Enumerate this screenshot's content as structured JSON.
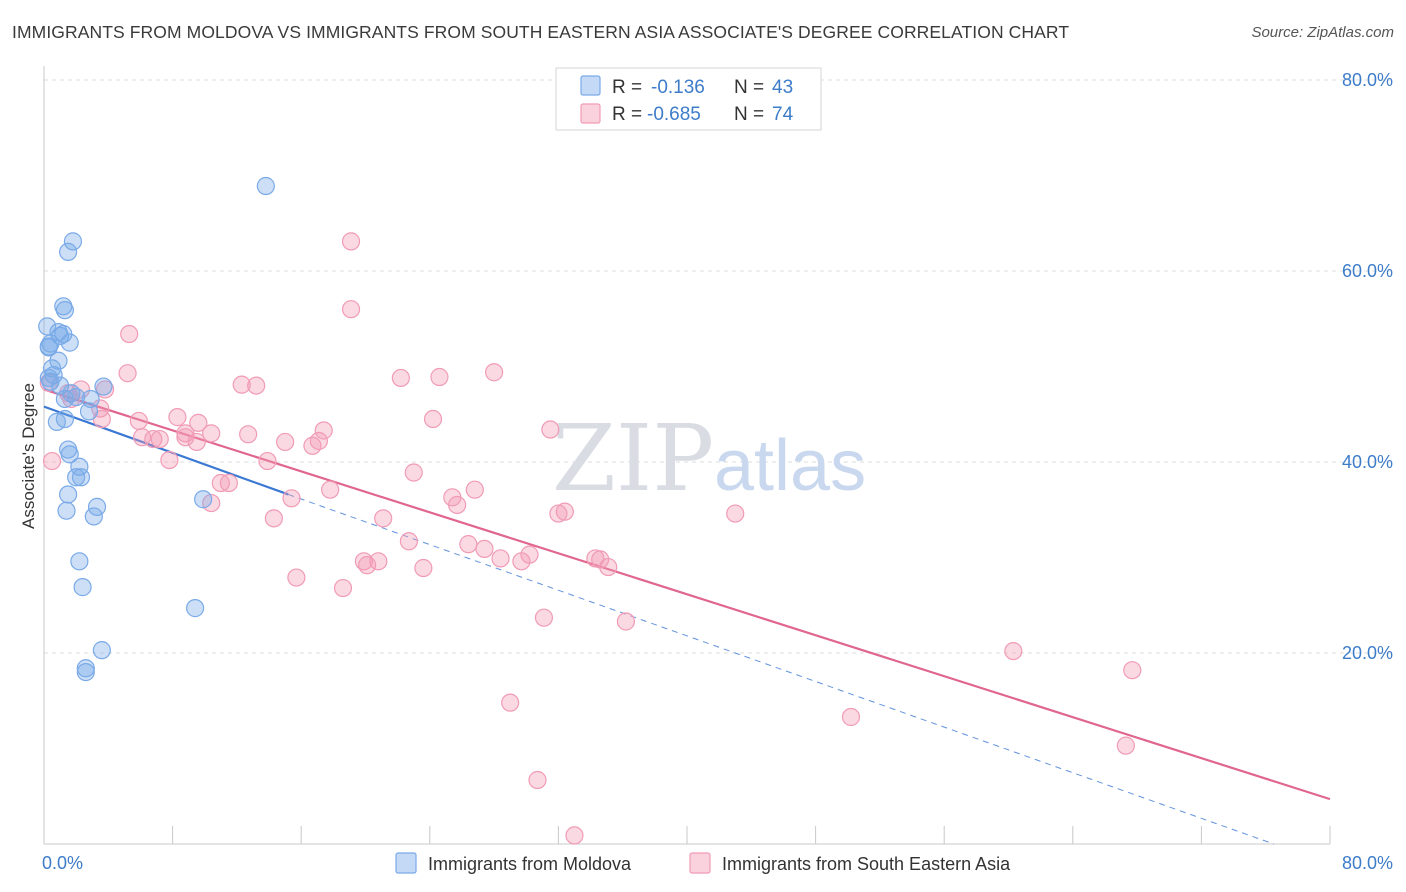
{
  "title": "IMMIGRANTS FROM MOLDOVA VS IMMIGRANTS FROM SOUTH EASTERN ASIA ASSOCIATE'S DEGREE CORRELATION CHART",
  "source": "Source: ZipAtlas.com",
  "watermark": {
    "zip": "ZIP",
    "atlas": "atlas"
  },
  "legend_top": {
    "rows": [
      {
        "r_label": "R =",
        "r_value": "-0.136",
        "n_label": "N =",
        "n_value": "43",
        "color": "#7aaae8"
      },
      {
        "r_label": "R =",
        "r_value": "-0.685",
        "n_label": "N =",
        "n_value": "74",
        "color": "#f19bb6"
      }
    ]
  },
  "legend_bottom": {
    "items": [
      {
        "label": "Immigrants from Moldova",
        "color": "#7aaae8"
      },
      {
        "label": "Immigrants from South Eastern Asia",
        "color": "#f19bb6"
      }
    ]
  },
  "chart_data": {
    "type": "scatter",
    "title": "IMMIGRANTS FROM MOLDOVA VS IMMIGRANTS FROM SOUTH EASTERN ASIA ASSOCIATE'S DEGREE CORRELATION CHART",
    "xlabel": "",
    "ylabel": "Associate's Degree",
    "xlim": [
      0,
      80
    ],
    "ylim": [
      0,
      80
    ],
    "x_tick_labels": [
      "0.0%",
      "80.0%"
    ],
    "y_tick_labels": [
      "20.0%",
      "40.0%",
      "60.0%",
      "80.0%"
    ],
    "y_ticks": [
      20,
      40,
      60,
      80
    ],
    "grid": true,
    "legend_position": "top-center",
    "series": [
      {
        "name": "Immigrants from Moldova",
        "color": "#7aaae8",
        "line_color": "#3b78d4",
        "trend": {
          "x": [
            0,
            15.2
          ],
          "y": [
            45.8,
            36.6
          ],
          "dashed_x": [
            15.2,
            76.5
          ],
          "dashed_y": [
            36.6,
            0
          ]
        },
        "points": [
          [
            0.2,
            54.2
          ],
          [
            0.4,
            52.4
          ],
          [
            0.3,
            52.1
          ],
          [
            0.5,
            49.8
          ],
          [
            0.4,
            48.4
          ],
          [
            0.6,
            49.1
          ],
          [
            0.3,
            48.8
          ],
          [
            0.9,
            53.6
          ],
          [
            1.0,
            53.2
          ],
          [
            1.2,
            56.3
          ],
          [
            1.3,
            55.9
          ],
          [
            1.2,
            53.4
          ],
          [
            0.9,
            50.6
          ],
          [
            1.6,
            52.5
          ],
          [
            1.5,
            62.0
          ],
          [
            1.8,
            63.1
          ],
          [
            1.0,
            48.0
          ],
          [
            1.3,
            46.6
          ],
          [
            1.7,
            47.2
          ],
          [
            2.0,
            46.8
          ],
          [
            2.8,
            45.3
          ],
          [
            2.9,
            46.6
          ],
          [
            3.7,
            47.9
          ],
          [
            0.8,
            44.2
          ],
          [
            1.3,
            44.5
          ],
          [
            1.5,
            41.3
          ],
          [
            1.6,
            40.8
          ],
          [
            2.2,
            39.5
          ],
          [
            2.0,
            38.4
          ],
          [
            2.3,
            38.4
          ],
          [
            1.5,
            36.6
          ],
          [
            3.3,
            35.3
          ],
          [
            1.4,
            34.9
          ],
          [
            3.1,
            34.3
          ],
          [
            2.2,
            29.6
          ],
          [
            2.4,
            26.9
          ],
          [
            9.9,
            36.1
          ],
          [
            9.4,
            24.7
          ],
          [
            3.6,
            20.3
          ],
          [
            2.6,
            18.4
          ],
          [
            2.6,
            18.0
          ],
          [
            13.8,
            68.9
          ],
          [
            0.3,
            52.0
          ]
        ]
      },
      {
        "name": "Immigrants from South Eastern Asia",
        "color": "#f19bb6",
        "line_color": "#e0668f",
        "trend": {
          "x": [
            0,
            80
          ],
          "y": [
            47.6,
            4.7
          ]
        },
        "points": [
          [
            0.3,
            48.3
          ],
          [
            0.5,
            40.1
          ],
          [
            1.5,
            47.2
          ],
          [
            2.3,
            47.6
          ],
          [
            1.7,
            46.6
          ],
          [
            3.8,
            47.6
          ],
          [
            3.5,
            45.6
          ],
          [
            5.2,
            49.3
          ],
          [
            5.3,
            53.4
          ],
          [
            3.6,
            44.5
          ],
          [
            5.9,
            44.3
          ],
          [
            6.1,
            42.6
          ],
          [
            6.8,
            42.4
          ],
          [
            7.2,
            42.4
          ],
          [
            7.8,
            40.2
          ],
          [
            8.3,
            44.7
          ],
          [
            8.8,
            43.0
          ],
          [
            8.8,
            42.6
          ],
          [
            9.6,
            44.1
          ],
          [
            9.5,
            42.1
          ],
          [
            10.4,
            43.0
          ],
          [
            10.4,
            35.7
          ],
          [
            11.0,
            37.8
          ],
          [
            11.5,
            37.8
          ],
          [
            12.3,
            48.1
          ],
          [
            13.2,
            48.0
          ],
          [
            12.7,
            42.9
          ],
          [
            13.9,
            40.1
          ],
          [
            14.3,
            34.1
          ],
          [
            15.0,
            42.1
          ],
          [
            15.4,
            36.2
          ],
          [
            15.7,
            27.9
          ],
          [
            16.7,
            41.7
          ],
          [
            17.1,
            42.2
          ],
          [
            17.4,
            43.3
          ],
          [
            17.8,
            37.1
          ],
          [
            18.6,
            26.8
          ],
          [
            19.1,
            56.0
          ],
          [
            19.1,
            63.1
          ],
          [
            19.9,
            29.6
          ],
          [
            20.1,
            29.2
          ],
          [
            20.8,
            29.6
          ],
          [
            21.1,
            34.1
          ],
          [
            22.2,
            48.8
          ],
          [
            22.7,
            31.7
          ],
          [
            23.0,
            38.9
          ],
          [
            23.6,
            28.9
          ],
          [
            24.2,
            44.5
          ],
          [
            24.6,
            48.9
          ],
          [
            25.4,
            36.3
          ],
          [
            25.7,
            35.5
          ],
          [
            26.4,
            31.4
          ],
          [
            26.8,
            37.1
          ],
          [
            27.4,
            30.9
          ],
          [
            28.0,
            49.4
          ],
          [
            28.4,
            29.9
          ],
          [
            29.0,
            14.8
          ],
          [
            29.7,
            29.6
          ],
          [
            30.2,
            30.3
          ],
          [
            30.7,
            6.7
          ],
          [
            31.1,
            23.7
          ],
          [
            31.5,
            43.4
          ],
          [
            32.0,
            34.6
          ],
          [
            32.4,
            34.8
          ],
          [
            33.0,
            0.9
          ],
          [
            34.3,
            29.9
          ],
          [
            34.6,
            29.8
          ],
          [
            35.1,
            29.0
          ],
          [
            36.2,
            23.3
          ],
          [
            43.0,
            34.6
          ],
          [
            50.2,
            13.3
          ],
          [
            60.3,
            20.2
          ],
          [
            67.7,
            18.2
          ],
          [
            67.3,
            10.3
          ]
        ]
      }
    ]
  }
}
